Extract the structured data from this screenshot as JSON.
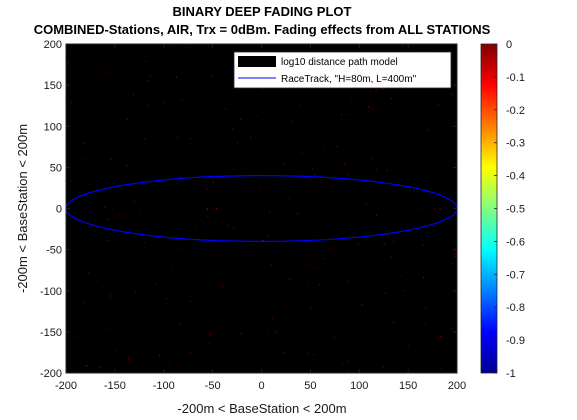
{
  "chart_data": {
    "type": "heatmap",
    "title": "BINARY DEEP FADING PLOT",
    "subtitle": "COMBINED-Stations, AIR, Trx = 0dBm. Fading effects from ALL STATIONS",
    "xlabel": "-200m < BaseStation < 200m",
    "ylabel": "-200m < BaseStation < 200m",
    "xlim": [
      -200,
      200
    ],
    "ylim": [
      -200,
      200
    ],
    "x_ticks": [
      -200,
      -150,
      -100,
      -50,
      0,
      50,
      100,
      150,
      200
    ],
    "y_ticks": [
      -200,
      -150,
      -100,
      -50,
      0,
      50,
      100,
      150,
      200
    ],
    "x_tick_labels": [
      "-200",
      "-150",
      "-100",
      "-50",
      "0",
      "50",
      "100",
      "150",
      "200"
    ],
    "y_tick_labels": [
      "-200",
      "-150",
      "-100",
      "-50",
      "0",
      "50",
      "100",
      "150",
      "200"
    ],
    "colorbar": {
      "limits": [
        -1,
        0
      ],
      "ticks": [
        0,
        -0.1,
        -0.2,
        -0.3,
        -0.4,
        -0.5,
        -0.6,
        -0.7,
        -0.8,
        -0.9,
        -1
      ],
      "tick_labels": [
        "0",
        "-0.1",
        "-0.2",
        "-0.3",
        "-0.4",
        "-0.5",
        "-0.6",
        "-0.7",
        "-0.8",
        "-0.9",
        "-1"
      ],
      "colormap": "jet"
    },
    "background_value": -1,
    "background_color": "#000000",
    "speckle_value": 0,
    "speckle_color": "#c00000",
    "speckle_density": 0.035,
    "legend": {
      "location": "top-right",
      "entries": [
        {
          "label": "log10 distance path model",
          "swatch": "filled",
          "color": "#000000"
        },
        {
          "label": "RaceTrack, \"H=80m, L=400m\"",
          "swatch": "line",
          "color": "#0000ff"
        }
      ]
    },
    "series": [
      {
        "name": "RaceTrack, \"H=80m, L=400m\"",
        "type": "ellipse",
        "center": [
          0,
          0
        ],
        "semi_axis_x": 200,
        "semi_axis_y": 40,
        "color": "#0000ff"
      }
    ],
    "grid": false
  }
}
